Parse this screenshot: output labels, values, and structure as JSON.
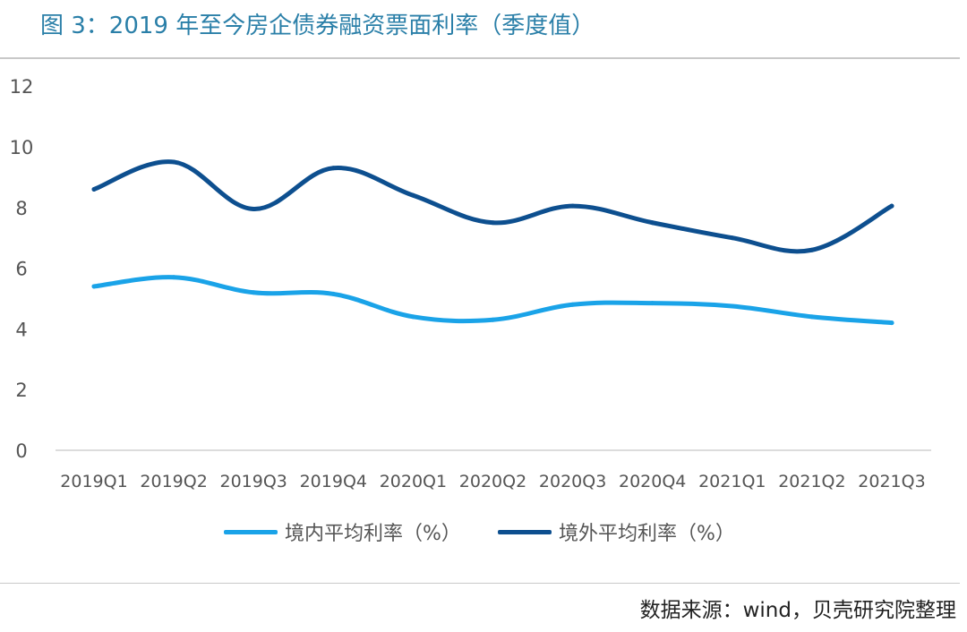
{
  "title": "图 3：2019 年至今房企债券融资票面利率（季度值）",
  "source": "数据来源：wind，贝壳研究院整理",
  "chart_data": {
    "type": "line",
    "title": "图 3：2019 年至今房企债券融资票面利率（季度值）",
    "xlabel": "",
    "ylabel": "",
    "categories": [
      "2019Q1",
      "2019Q2",
      "2019Q3",
      "2019Q4",
      "2020Q1",
      "2020Q2",
      "2020Q3",
      "2020Q4",
      "2021Q1",
      "2021Q2",
      "2021Q3"
    ],
    "ylim": [
      0,
      12
    ],
    "yticks": [
      0,
      2,
      4,
      6,
      8,
      10,
      12
    ],
    "grid": false,
    "legend_position": "bottom",
    "series": [
      {
        "name": "境内平均利率（%）",
        "color": "#1aa3e8",
        "values": [
          5.4,
          5.7,
          5.2,
          5.15,
          4.4,
          4.3,
          4.8,
          4.85,
          4.75,
          4.4,
          4.2
        ]
      },
      {
        "name": "境外平均利率（%）",
        "color": "#0d4f8f",
        "values": [
          8.6,
          9.5,
          7.95,
          9.3,
          8.4,
          7.5,
          8.05,
          7.5,
          7.0,
          6.6,
          8.05
        ]
      }
    ]
  }
}
